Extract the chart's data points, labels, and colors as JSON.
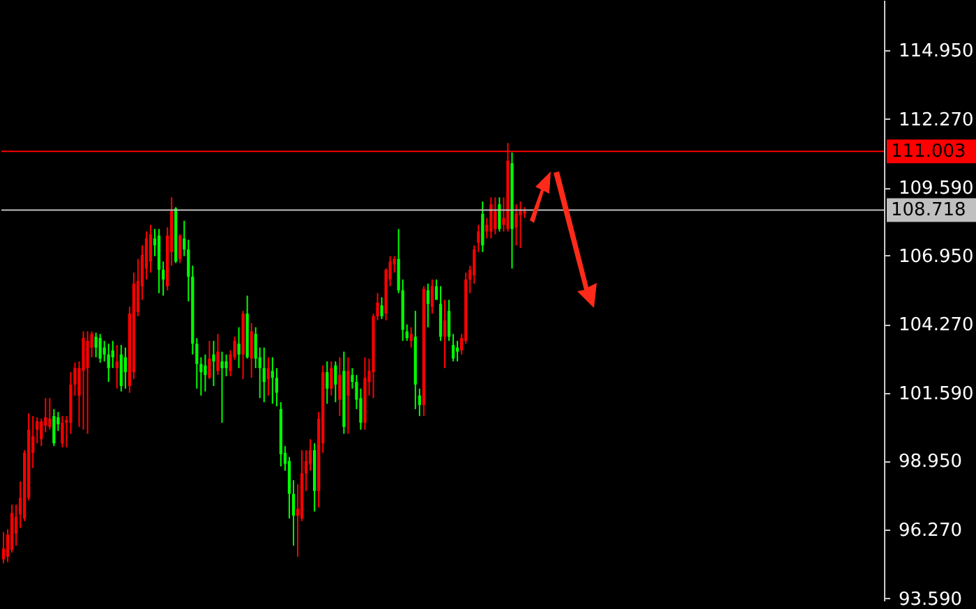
{
  "chart_data": {
    "type": "candlestick",
    "categories": [
      null,
      null,
      null,
      null,
      null,
      null,
      null,
      null,
      null,
      null,
      null,
      null,
      null,
      null,
      null,
      null,
      null,
      null,
      null,
      null,
      null,
      null,
      null,
      null,
      null,
      null,
      null,
      null,
      null,
      null,
      null,
      null,
      null,
      null,
      null,
      null,
      null,
      null,
      null,
      null,
      null,
      null,
      null,
      null,
      null,
      null,
      null,
      null,
      null,
      null,
      null,
      null,
      null,
      null,
      null,
      null,
      null,
      null,
      null,
      null,
      null,
      null,
      null,
      null,
      null,
      null,
      null,
      null,
      null,
      null,
      null,
      null,
      null,
      null,
      null,
      null,
      null,
      null,
      null,
      null,
      null,
      null,
      null,
      null,
      null,
      null,
      null,
      null,
      null,
      null,
      null,
      null,
      null,
      null,
      null,
      null,
      null,
      null,
      null,
      null,
      null,
      null,
      null,
      null,
      null,
      null,
      null,
      null,
      null,
      null,
      null,
      null,
      null,
      null,
      null,
      null,
      null,
      null,
      null,
      null,
      null,
      null,
      null,
      null,
      null,
      null,
      null,
      null,
      null,
      null,
      null,
      null,
      null,
      null,
      null,
      null,
      null,
      null,
      null,
      null,
      null,
      null,
      null,
      null,
      null,
      null,
      null,
      null,
      null,
      null,
      null,
      null,
      null,
      null,
      null,
      null,
      null,
      null,
      null,
      null,
      null,
      null,
      null,
      null,
      null,
      null,
      null,
      null,
      null,
      null,
      null,
      null,
      null,
      null,
      null,
      null,
      null,
      null,
      null,
      null,
      null,
      null,
      null,
      null,
      null,
      null,
      null,
      null,
      null,
      null,
      null,
      null,
      null,
      null,
      null,
      null,
      null,
      null,
      null,
      null,
      null,
      null,
      null,
      null,
      null,
      null,
      null,
      null,
      null,
      null
    ],
    "ohlc": [
      [
        95.11,
        96.17,
        94.95,
        95.53
      ],
      [
        95.21,
        96.28,
        95.0,
        96.07
      ],
      [
        95.48,
        97.24,
        95.37,
        96.92
      ],
      [
        96.12,
        97.24,
        95.64,
        96.76
      ],
      [
        96.86,
        98.14,
        96.33,
        97.5
      ],
      [
        96.7,
        99.36,
        96.6,
        99.26
      ],
      [
        97.5,
        100.8,
        97.4,
        100.16
      ],
      [
        99.26,
        100.69,
        98.67,
        99.9
      ],
      [
        100.16,
        100.64,
        99.63,
        100.48
      ],
      [
        99.79,
        100.59,
        99.52,
        100.48
      ],
      [
        100.32,
        101.39,
        100.06,
        100.64
      ],
      [
        100.27,
        101.39,
        100.16,
        100.59
      ],
      [
        100.69,
        100.96,
        99.52,
        99.63
      ],
      [
        100.64,
        100.85,
        100.11,
        100.37
      ],
      [
        99.63,
        100.69,
        99.47,
        100.43
      ],
      [
        100.43,
        100.69,
        99.47,
        100.53
      ],
      [
        100.43,
        102.4,
        100.0,
        101.92
      ],
      [
        101.92,
        102.77,
        101.49,
        102.56
      ],
      [
        101.49,
        102.82,
        100.27,
        102.56
      ],
      [
        102.45,
        103.99,
        100.16,
        103.73
      ],
      [
        102.56,
        103.99,
        100.0,
        103.62
      ],
      [
        103.36,
        103.99,
        102.98,
        103.89
      ],
      [
        103.78,
        103.94,
        102.98,
        103.36
      ],
      [
        103.73,
        103.89,
        102.77,
        102.93
      ],
      [
        103.36,
        103.62,
        102.82,
        103.09
      ],
      [
        103.09,
        103.51,
        102.02,
        102.56
      ],
      [
        103.25,
        103.62,
        102.56,
        102.98
      ],
      [
        102.56,
        103.46,
        101.76,
        102.82
      ],
      [
        103.09,
        103.46,
        101.65,
        101.86
      ],
      [
        102.98,
        103.36,
        101.76,
        102.4
      ],
      [
        101.86,
        104.95,
        101.6,
        104.68
      ],
      [
        102.4,
        106.28,
        102.13,
        105.85
      ],
      [
        104.74,
        106.81,
        104.58,
        105.96
      ],
      [
        105.75,
        107.34,
        105.22,
        106.97
      ],
      [
        106.44,
        107.88,
        106.01,
        107.61
      ],
      [
        106.71,
        108.14,
        106.28,
        107.77
      ],
      [
        107.61,
        107.98,
        106.92,
        107.34
      ],
      [
        107.72,
        107.98,
        105.48,
        106.39
      ],
      [
        106.39,
        106.71,
        105.38,
        106.01
      ],
      [
        105.75,
        108.04,
        105.59,
        107.72
      ],
      [
        107.08,
        109.21,
        106.55,
        108.67
      ],
      [
        108.78,
        108.83,
        106.65,
        106.71
      ],
      [
        106.81,
        107.77,
        106.65,
        107.72
      ],
      [
        107.61,
        108.3,
        106.92,
        107.18
      ],
      [
        107.18,
        107.56,
        105.16,
        106.12
      ],
      [
        106.12,
        106.55,
        103.09,
        103.51
      ],
      [
        103.51,
        103.73,
        101.76,
        102.72
      ],
      [
        102.72,
        102.98,
        101.49,
        102.4
      ],
      [
        102.66,
        103.09,
        101.65,
        102.29
      ],
      [
        102.18,
        103.62,
        102.13,
        102.93
      ],
      [
        103.09,
        103.62,
        101.86,
        102.82
      ],
      [
        102.45,
        103.89,
        102.29,
        103.2
      ],
      [
        102.82,
        103.2,
        100.43,
        102.56
      ],
      [
        102.82,
        103.09,
        102.24,
        102.56
      ],
      [
        102.45,
        103.25,
        102.24,
        103.09
      ],
      [
        102.98,
        103.78,
        102.88,
        103.62
      ],
      [
        103.51,
        104.15,
        102.56,
        103.09
      ],
      [
        103.09,
        104.79,
        102.13,
        104.68
      ],
      [
        104.68,
        105.38,
        102.93,
        102.98
      ],
      [
        102.93,
        104.31,
        102.18,
        103.99
      ],
      [
        103.89,
        104.15,
        102.56,
        102.93
      ],
      [
        102.98,
        103.36,
        101.39,
        102.56
      ],
      [
        102.56,
        103.36,
        101.23,
        102.02
      ],
      [
        102.13,
        102.98,
        101.49,
        102.56
      ],
      [
        102.45,
        102.98,
        101.17,
        102.18
      ],
      [
        102.18,
        102.56,
        101.07,
        101.6
      ],
      [
        100.96,
        101.23,
        98.73,
        99.2
      ],
      [
        99.26,
        99.52,
        98.56,
        98.83
      ],
      [
        98.94,
        99.1,
        96.7,
        97.66
      ],
      [
        97.66,
        98.19,
        95.64,
        96.81
      ],
      [
        96.81,
        98.03,
        95.21,
        97.08
      ],
      [
        96.7,
        99.36,
        96.6,
        98.46
      ],
      [
        98.46,
        99.36,
        97.77,
        98.94
      ],
      [
        98.83,
        99.79,
        98.56,
        99.36
      ],
      [
        99.36,
        99.63,
        96.97,
        97.77
      ],
      [
        97.77,
        100.85,
        97.13,
        100.59
      ],
      [
        99.63,
        102.66,
        99.26,
        102.4
      ],
      [
        102.4,
        102.82,
        101.17,
        101.76
      ],
      [
        101.76,
        102.82,
        101.49,
        102.56
      ],
      [
        102.66,
        102.82,
        101.23,
        101.92
      ],
      [
        101.33,
        102.98,
        100.69,
        102.29
      ],
      [
        102.45,
        103.2,
        100.0,
        100.27
      ],
      [
        101.49,
        102.98,
        100.0,
        102.45
      ],
      [
        102.29,
        102.56,
        101.76,
        102.02
      ],
      [
        102.02,
        102.29,
        100.96,
        101.33
      ],
      [
        101.39,
        101.76,
        100.16,
        100.43
      ],
      [
        100.43,
        102.98,
        100.16,
        102.18
      ],
      [
        102.02,
        102.93,
        101.49,
        102.45
      ],
      [
        102.4,
        104.68,
        101.39,
        104.58
      ],
      [
        104.58,
        105.48,
        104.42,
        105.11
      ],
      [
        105.0,
        105.32,
        104.47,
        104.58
      ],
      [
        104.68,
        106.44,
        104.42,
        106.39
      ],
      [
        106.01,
        106.92,
        105.75,
        106.71
      ],
      [
        106.6,
        106.92,
        106.28,
        106.81
      ],
      [
        106.81,
        107.98,
        105.48,
        105.59
      ],
      [
        105.59,
        106.01,
        103.62,
        104.05
      ],
      [
        103.99,
        104.26,
        103.62,
        103.73
      ],
      [
        103.62,
        104.15,
        103.36,
        103.89
      ],
      [
        103.78,
        104.79,
        100.96,
        101.92
      ],
      [
        101.49,
        101.76,
        100.69,
        101.12
      ],
      [
        101.12,
        105.75,
        100.69,
        105.64
      ],
      [
        105.59,
        105.85,
        104.15,
        105.06
      ],
      [
        104.95,
        106.01,
        104.68,
        105.75
      ],
      [
        105.75,
        106.01,
        105.22,
        105.22
      ],
      [
        105.06,
        105.75,
        103.62,
        103.78
      ],
      [
        103.78,
        105.22,
        102.56,
        104.42
      ],
      [
        104.79,
        105.22,
        103.62,
        103.78
      ],
      [
        103.46,
        103.89,
        102.82,
        102.93
      ],
      [
        103.36,
        103.62,
        102.82,
        103.2
      ],
      [
        103.25,
        103.89,
        103.09,
        103.73
      ],
      [
        103.62,
        106.28,
        103.51,
        106.01
      ],
      [
        106.01,
        106.55,
        105.48,
        106.39
      ],
      [
        106.17,
        107.34,
        105.85,
        107.18
      ],
      [
        107.45,
        108.14,
        107.08,
        107.88
      ],
      [
        108.57,
        109.05,
        107.08,
        107.34
      ],
      [
        107.88,
        108.41,
        107.61,
        108.14
      ],
      [
        107.88,
        109.21,
        107.61,
        108.94
      ],
      [
        107.98,
        109.21,
        107.77,
        108.67
      ],
      [
        108.94,
        109.21,
        107.88,
        107.98
      ],
      [
        108.14,
        109.21,
        107.88,
        108.41
      ],
      [
        107.98,
        111.33,
        107.88,
        110.64
      ],
      [
        110.54,
        110.96,
        106.44,
        107.98
      ],
      [
        108.04,
        108.94,
        107.34,
        108.57
      ],
      [
        108.51,
        109.05,
        107.24,
        108.67
      ],
      [
        108.57,
        108.83,
        108.41,
        108.67
      ],
      null,
      null,
      null,
      null,
      null,
      null,
      null,
      null,
      null,
      null,
      null,
      null,
      null,
      null,
      null,
      null,
      null,
      null,
      null,
      null,
      null,
      null,
      null,
      null,
      null,
      null,
      null,
      null,
      null,
      null,
      null,
      null,
      null,
      null,
      null,
      null,
      null,
      null,
      null,
      null,
      null,
      null,
      null,
      null,
      null,
      null,
      null,
      null,
      null,
      null,
      null,
      null,
      null,
      null,
      null,
      null,
      null,
      null,
      null,
      null,
      null,
      null,
      null,
      null,
      null,
      null,
      null,
      null,
      null,
      null,
      null,
      null,
      null,
      null,
      null,
      null,
      null,
      null,
      null,
      null,
      null,
      null,
      null,
      null,
      null
    ],
    "colors": [
      "#ff0000",
      "#ff0000",
      "#ff0000",
      "#ff0000",
      "#ff0000",
      "#ff0000",
      "#ff0000",
      "#ff0000",
      "#ff0000",
      "#ff0000",
      "#ff0000",
      "#ff0000",
      "#00ff00",
      "#00ff00",
      "#ff0000",
      "#ff0000",
      "#ff0000",
      "#ff0000",
      "#ff0000",
      "#ff0000",
      "#ff0000",
      "#ff0000",
      "#00ff00",
      "#00ff00",
      "#00ff00",
      "#00ff00",
      "#00ff00",
      "#ff0000",
      "#00ff00",
      "#00ff00",
      "#ff0000",
      "#ff0000",
      "#ff0000",
      "#ff0000",
      "#ff0000",
      "#ff0000",
      "#00ff00",
      "#00ff00",
      "#00ff00",
      "#ff0000",
      "#ff0000",
      "#00ff00",
      "#ff0000",
      "#00ff00",
      "#00ff00",
      "#00ff00",
      "#00ff00",
      "#00ff00",
      "#00ff00",
      "#ff0000",
      "#00ff00",
      "#ff0000",
      "#00ff00",
      "#00ff00",
      "#ff0000",
      "#ff0000",
      "#00ff00",
      "#ff0000",
      "#00ff00",
      "#ff0000",
      "#00ff00",
      "#00ff00",
      "#00ff00",
      "#ff0000",
      "#00ff00",
      "#00ff00",
      "#00ff00",
      "#00ff00",
      "#00ff00",
      "#00ff00",
      "#ff0000",
      "#ff0000",
      "#ff0000",
      "#ff0000",
      "#00ff00",
      "#ff0000",
      "#ff0000",
      "#00ff00",
      "#ff0000",
      "#00ff00",
      "#ff0000",
      "#00ff00",
      "#ff0000",
      "#00ff00",
      "#00ff00",
      "#00ff00",
      "#ff0000",
      "#ff0000",
      "#ff0000",
      "#ff0000",
      "#00ff00",
      "#ff0000",
      "#ff0000",
      "#ff0000",
      "#00ff00",
      "#00ff00",
      "#00ff00",
      "#ff0000",
      "#00ff00",
      "#00ff00",
      "#ff0000",
      "#00ff00",
      "#ff0000",
      "#00ff00",
      "#00ff00",
      "#ff0000",
      "#00ff00",
      "#00ff00",
      "#00ff00",
      "#ff0000",
      "#ff0000",
      "#ff0000",
      "#ff0000",
      "#ff0000",
      "#00ff00",
      "#ff0000",
      "#ff0000",
      "#ff0000",
      "#00ff00",
      "#ff0000",
      "#ff0000",
      "#00ff00",
      "#ff0000",
      "#ff0000",
      "#ff0000",
      null,
      null,
      null,
      null,
      null,
      null,
      null,
      null,
      null,
      null,
      null,
      null,
      null,
      null,
      null,
      null,
      null,
      null,
      null,
      null,
      null,
      null,
      null,
      null,
      null,
      null,
      null,
      null,
      null,
      null,
      null,
      null,
      null,
      null,
      null,
      null,
      null,
      null,
      null,
      null,
      null,
      null,
      null,
      null,
      null,
      null,
      null,
      null,
      null,
      null,
      null,
      null,
      null,
      null,
      null,
      null,
      null,
      null,
      null,
      null,
      null,
      null,
      null,
      null,
      null,
      null,
      null,
      null,
      null,
      null,
      null,
      null,
      null,
      null,
      null,
      null,
      null,
      null,
      null,
      null,
      null,
      null,
      null,
      null,
      null
    ],
    "ylim": [
      93.5,
      116.9
    ],
    "yticks": [
      {
        "value": 93.59,
        "label": "93.590"
      },
      {
        "value": 96.27,
        "label": "96.270"
      },
      {
        "value": 98.95,
        "label": "98.950"
      },
      {
        "value": 101.59,
        "label": "101.590"
      },
      {
        "value": 104.27,
        "label": "104.270"
      },
      {
        "value": 106.95,
        "label": "106.950"
      },
      {
        "value": 109.59,
        "label": "109.590"
      },
      {
        "value": 112.27,
        "label": "112.270"
      },
      {
        "value": 114.95,
        "label": "114.950"
      }
    ],
    "ref_lines": [
      {
        "axis": "y",
        "value": 111.003,
        "label": "111.003",
        "color": "#ff0000"
      },
      {
        "axis": "y",
        "value": 108.718,
        "label": "108.718",
        "color": "#c0c0c0"
      }
    ],
    "tick_labels": "y"
  }
}
